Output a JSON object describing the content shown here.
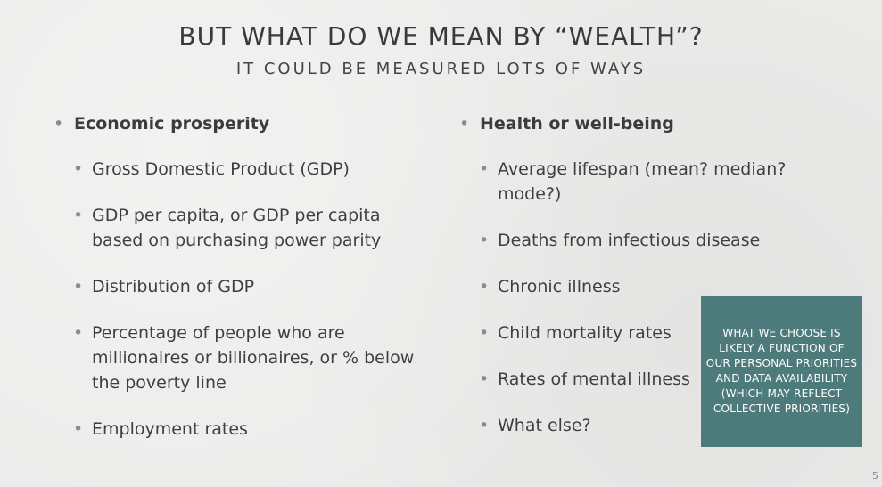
{
  "slide": {
    "title": "BUT WHAT DO WE MEAN BY “WEALTH”?",
    "subtitle": "IT COULD BE MEASURED LOTS OF WAYS",
    "bullet_glyph": "•",
    "left": {
      "heading": "Economic prosperity",
      "items": [
        "Gross Domestic Product (GDP)",
        "GDP per capita, or GDP per capita based on purchasing power parity",
        "Distribution of GDP",
        "Percentage of people who are millionaires or billionaires, or % below the poverty line",
        "Employment rates"
      ]
    },
    "right": {
      "heading": "Health or well-being",
      "items": [
        "Average lifespan (mean? median? mode?)",
        "Deaths from infectious disease",
        "Chronic illness",
        "Child mortality rates",
        "Rates of mental illness",
        "What else?"
      ]
    },
    "callout": {
      "text": "WHAT WE CHOOSE IS\nLIKELY A FUNCTION OF\nOUR PERSONAL PRIORITIES\nAND DATA AVAILABILITY\n(WHICH MAY REFLECT\nCOLLECTIVE PRIORITIES)",
      "color": "#4d7a7b"
    },
    "page_number": "5"
  }
}
